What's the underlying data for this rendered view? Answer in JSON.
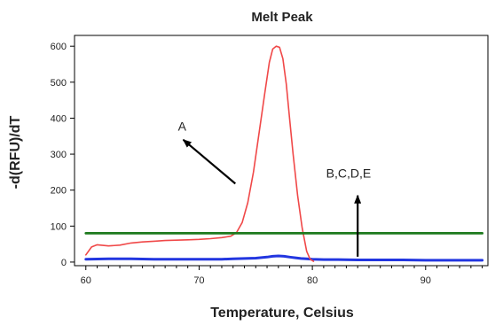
{
  "chart_data": {
    "type": "line",
    "title": "Melt Peak",
    "xlabel": "Temperature, Celsius",
    "ylabel": "-d(RFU)/dT",
    "xlim": [
      59,
      95.5
    ],
    "ylim": [
      -10,
      630
    ],
    "xticks": [
      60,
      70,
      80,
      90
    ],
    "yticks": [
      0,
      100,
      200,
      300,
      400,
      500,
      600
    ],
    "grid": false,
    "series": [
      {
        "color": "#f04848",
        "x": [
          60.0,
          60.5,
          61.0,
          62.0,
          63.0,
          64.0,
          65.0,
          66.0,
          67.0,
          68.0,
          69.0,
          70.0,
          71.0,
          72.0,
          72.8,
          73.3,
          73.8,
          74.3,
          74.8,
          75.3,
          75.8,
          76.2,
          76.5,
          76.8,
          77.1,
          77.4,
          77.7,
          78.0,
          78.3,
          78.7,
          79.1,
          79.5,
          79.8,
          80.1
        ],
        "y": [
          20,
          42,
          48,
          45,
          47,
          53,
          56,
          58,
          60,
          61,
          62,
          63,
          65,
          68,
          72,
          82,
          110,
          165,
          250,
          360,
          470,
          555,
          592,
          600,
          597,
          565,
          495,
          395,
          300,
          185,
          95,
          30,
          8,
          2
        ]
      },
      {
        "color": "#2236e0",
        "x": [
          60.0,
          62.0,
          64.0,
          66.0,
          68.0,
          70.0,
          72.0,
          73.0,
          74.0,
          75.0,
          76.0,
          76.5,
          77.0,
          77.5,
          78.0,
          78.5,
          79.0,
          79.5,
          80.0,
          81.0,
          82.0,
          84.0,
          86.0,
          88.0,
          90.0,
          92.0,
          94.0,
          95.0
        ],
        "y": [
          8,
          9,
          9,
          8,
          8,
          8,
          8,
          9,
          10,
          11,
          14,
          16,
          17,
          16,
          14,
          12,
          10,
          9,
          8,
          7,
          7,
          6,
          6,
          6,
          5,
          5,
          5,
          5
        ]
      },
      {
        "color": "#1e7a1e",
        "x": [
          60,
          95
        ],
        "y": [
          80,
          80
        ]
      }
    ],
    "annotations": [
      {
        "text": "A",
        "x": 68.5,
        "y": 365
      },
      {
        "text": "B,C,D,E",
        "x": 83.2,
        "y": 235
      }
    ],
    "arrows": [
      {
        "from": [
          73.2,
          218
        ],
        "to": [
          68.6,
          340
        ]
      },
      {
        "from": [
          84.0,
          15
        ],
        "to": [
          84.0,
          185
        ]
      }
    ]
  }
}
